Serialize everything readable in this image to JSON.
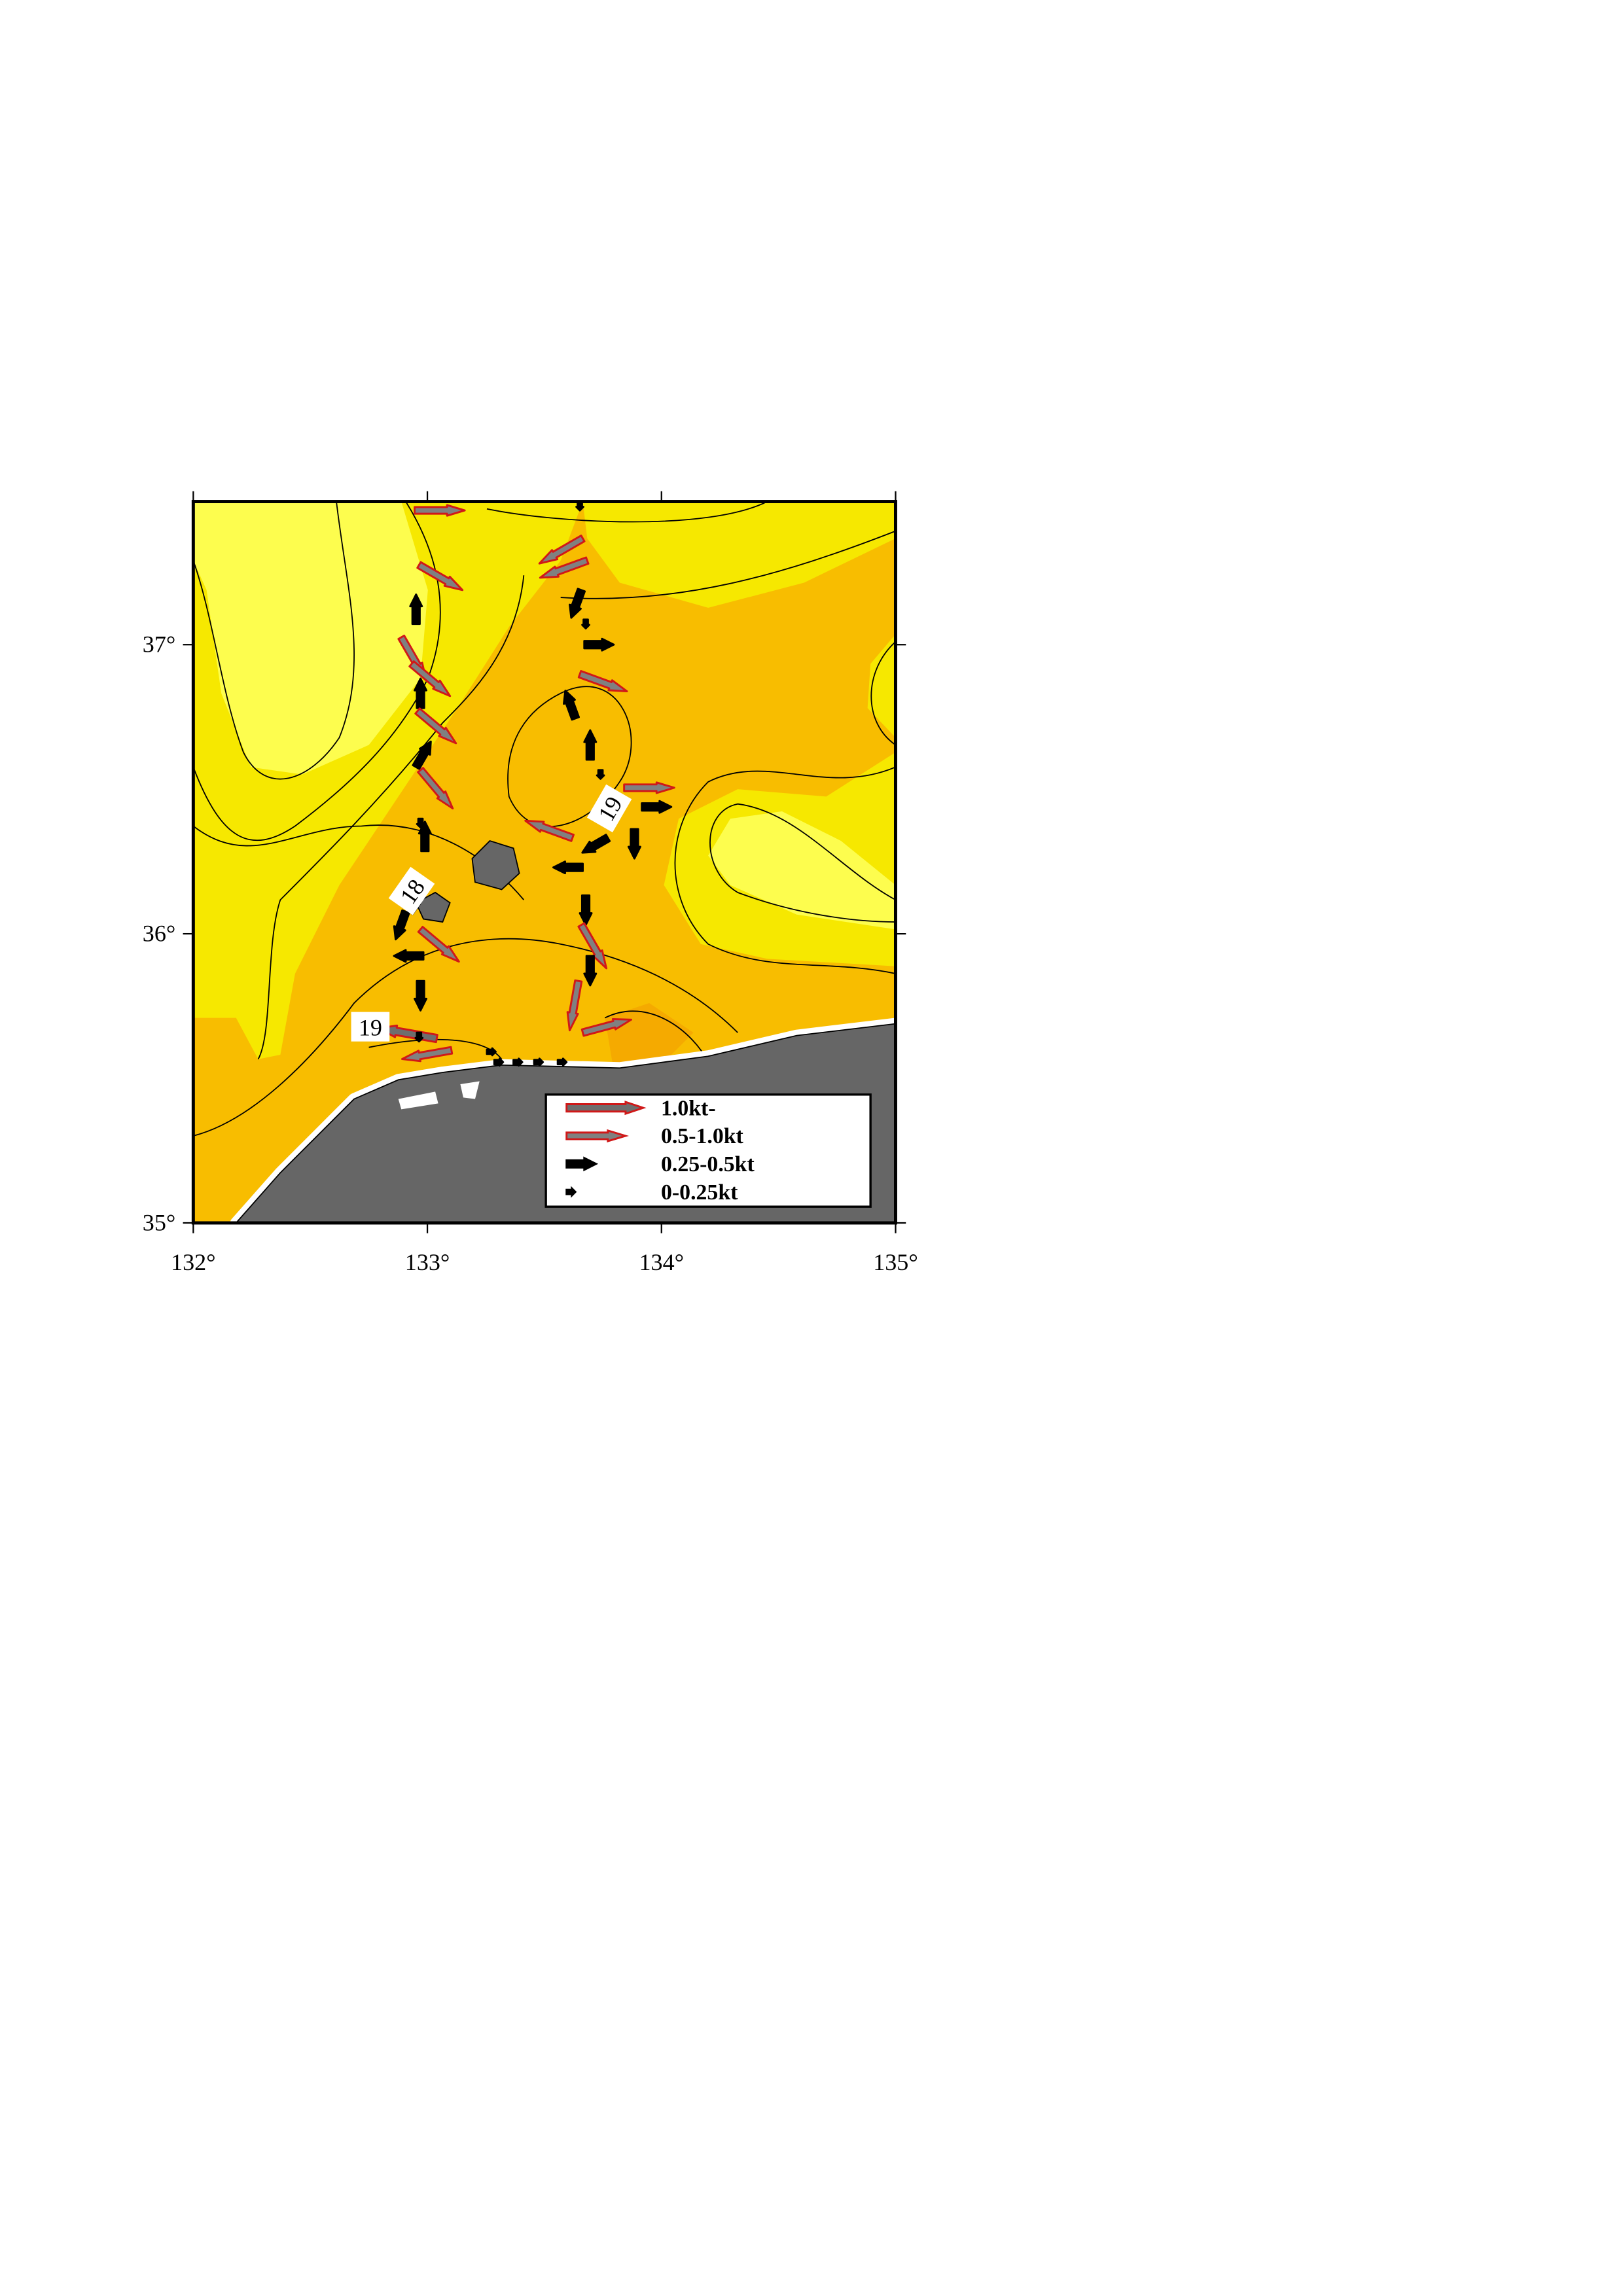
{
  "map": {
    "lon_ticks": [
      {
        "value": 132,
        "label": "132°"
      },
      {
        "value": 133,
        "label": "133°"
      },
      {
        "value": 134,
        "label": "134°"
      },
      {
        "value": 135,
        "label": "135°"
      }
    ],
    "lat_ticks": [
      {
        "value": 35,
        "label": "35°"
      },
      {
        "value": 36,
        "label": "36°"
      },
      {
        "value": 37,
        "label": "37°"
      }
    ],
    "contour_labels": [
      "18",
      "19",
      "19"
    ],
    "legend": [
      "1.0kt-",
      "0.5-1.0kt",
      "0.25-0.5kt",
      "0-0.25kt"
    ]
  }
}
